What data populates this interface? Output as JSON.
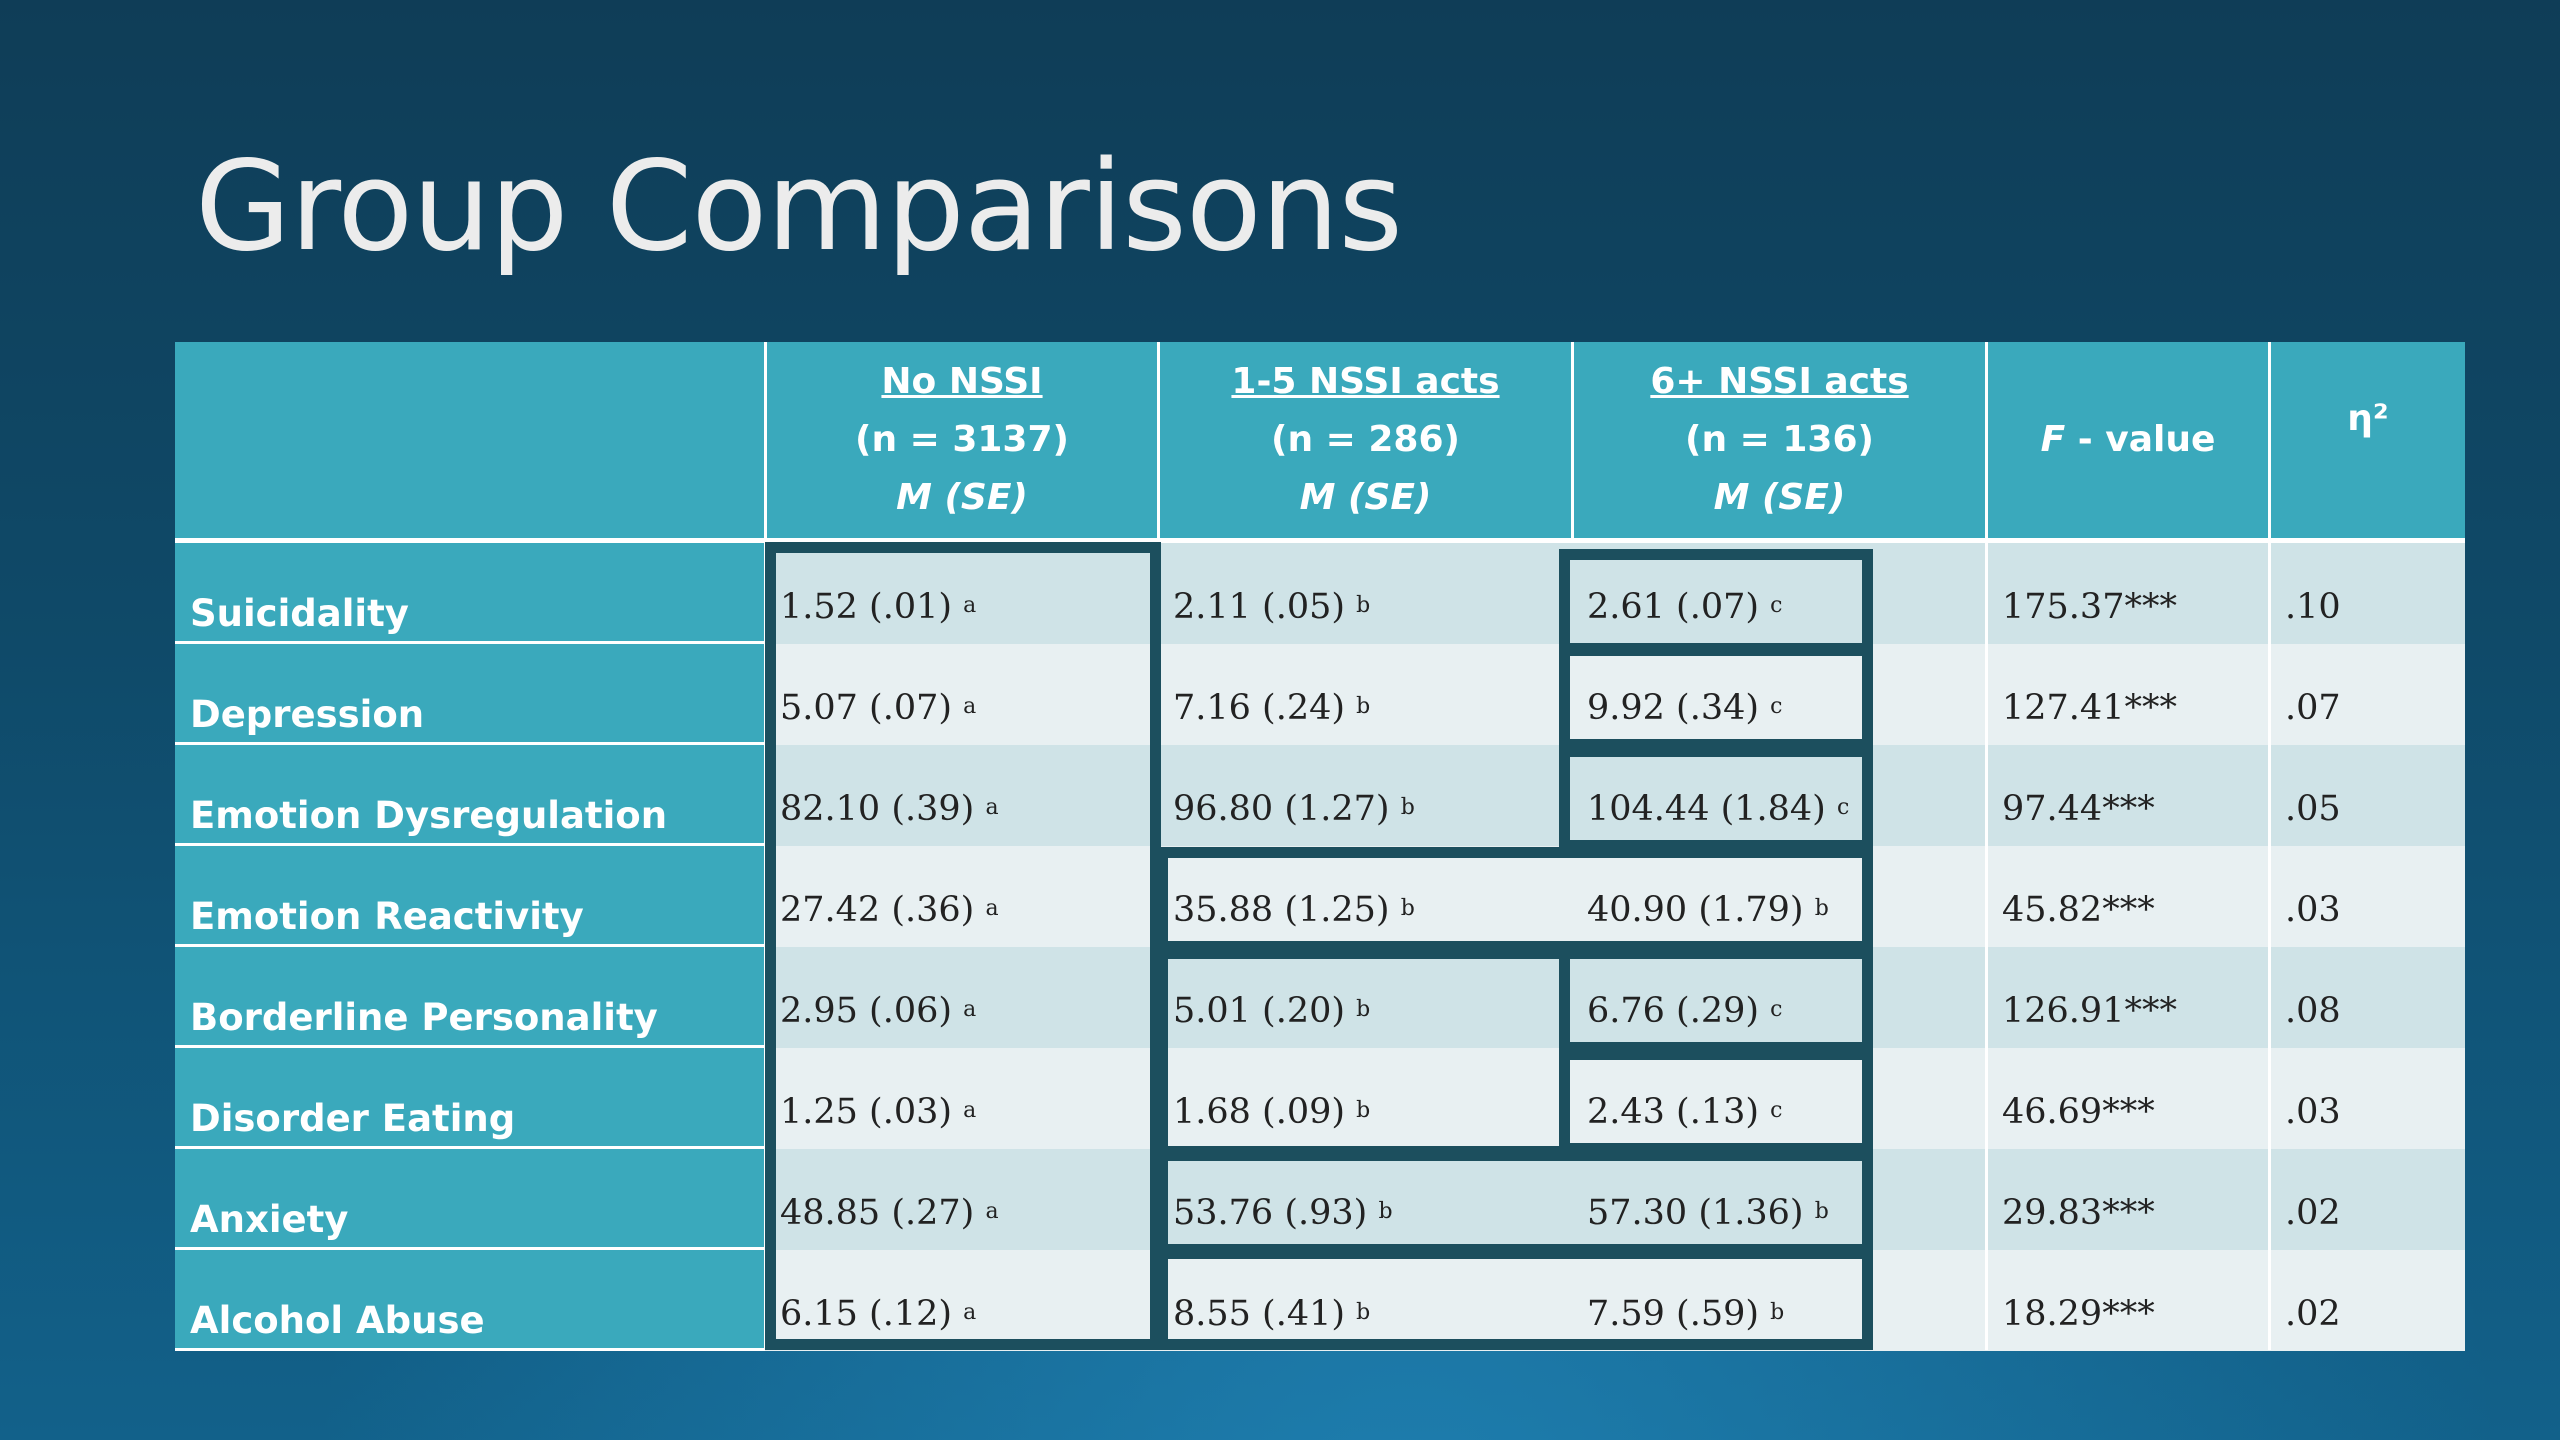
{
  "title": "Group Comparisons",
  "table": {
    "headers": [
      {
        "line1": "No NSSI",
        "line2": "(n = 3137)",
        "line3": "M (SE)"
      },
      {
        "line1": "1-5 NSSI acts",
        "line2": "(n = 286)",
        "line3": "M (SE)"
      },
      {
        "line1": "6+ NSSI acts",
        "line2": "(n = 136)",
        "line3": "M (SE)"
      },
      {
        "f_italic": "F",
        "f_rest": " - value"
      },
      {
        "eta": "η²"
      }
    ],
    "rows": [
      {
        "label": "Suicidality",
        "c1": "1.52 (.01)",
        "s1": "a",
        "c2": "2.11 (.05)",
        "s2": "b",
        "c3": "2.61 (.07)",
        "s3": "c",
        "f": "175.37***",
        "eta": ".10"
      },
      {
        "label": "Depression",
        "c1": "5.07 (.07)",
        "s1": "a",
        "c2": "7.16 (.24)",
        "s2": "b",
        "c3": "9.92 (.34)",
        "s3": "c",
        "f": "127.41***",
        "eta": ".07"
      },
      {
        "label": "Emotion Dysregulation",
        "c1": "82.10 (.39)",
        "s1": "a",
        "c2": "96.80 (1.27)",
        "s2": "b",
        "c3": "104.44 (1.84)",
        "s3": "c",
        "f": "97.44***",
        "eta": ".05"
      },
      {
        "label": "Emotion Reactivity",
        "c1": "27.42 (.36)",
        "s1": "a",
        "c2": "35.88 (1.25)",
        "s2": "b",
        "c3": "40.90 (1.79)",
        "s3": "b",
        "f": "45.82***",
        "eta": ".03"
      },
      {
        "label": "Borderline Personality",
        "c1": "2.95 (.06)",
        "s1": "a",
        "c2": "5.01 (.20)",
        "s2": "b",
        "c3": "6.76 (.29)",
        "s3": "c",
        "f": "126.91***",
        "eta": ".08"
      },
      {
        "label": "Disorder Eating",
        "c1": "1.25 (.03)",
        "s1": "a",
        "c2": "1.68 (.09)",
        "s2": "b",
        "c3": "2.43 (.13)",
        "s3": "c",
        "f": "46.69***",
        "eta": ".03"
      },
      {
        "label": "Anxiety",
        "c1": "48.85 (.27)",
        "s1": "a",
        "c2": "53.76 (.93)",
        "s2": "b",
        "c3": "57.30 (1.36)",
        "s3": "b",
        "f": "29.83***",
        "eta": ".02"
      },
      {
        "label": "Alcohol Abuse",
        "c1": "6.15 (.12)",
        "s1": "a",
        "c2": "8.55 (.41)",
        "s2": "b",
        "c3": "7.59 (.59)",
        "s3": "b",
        "f": "18.29***",
        "eta": ".02"
      }
    ]
  }
}
